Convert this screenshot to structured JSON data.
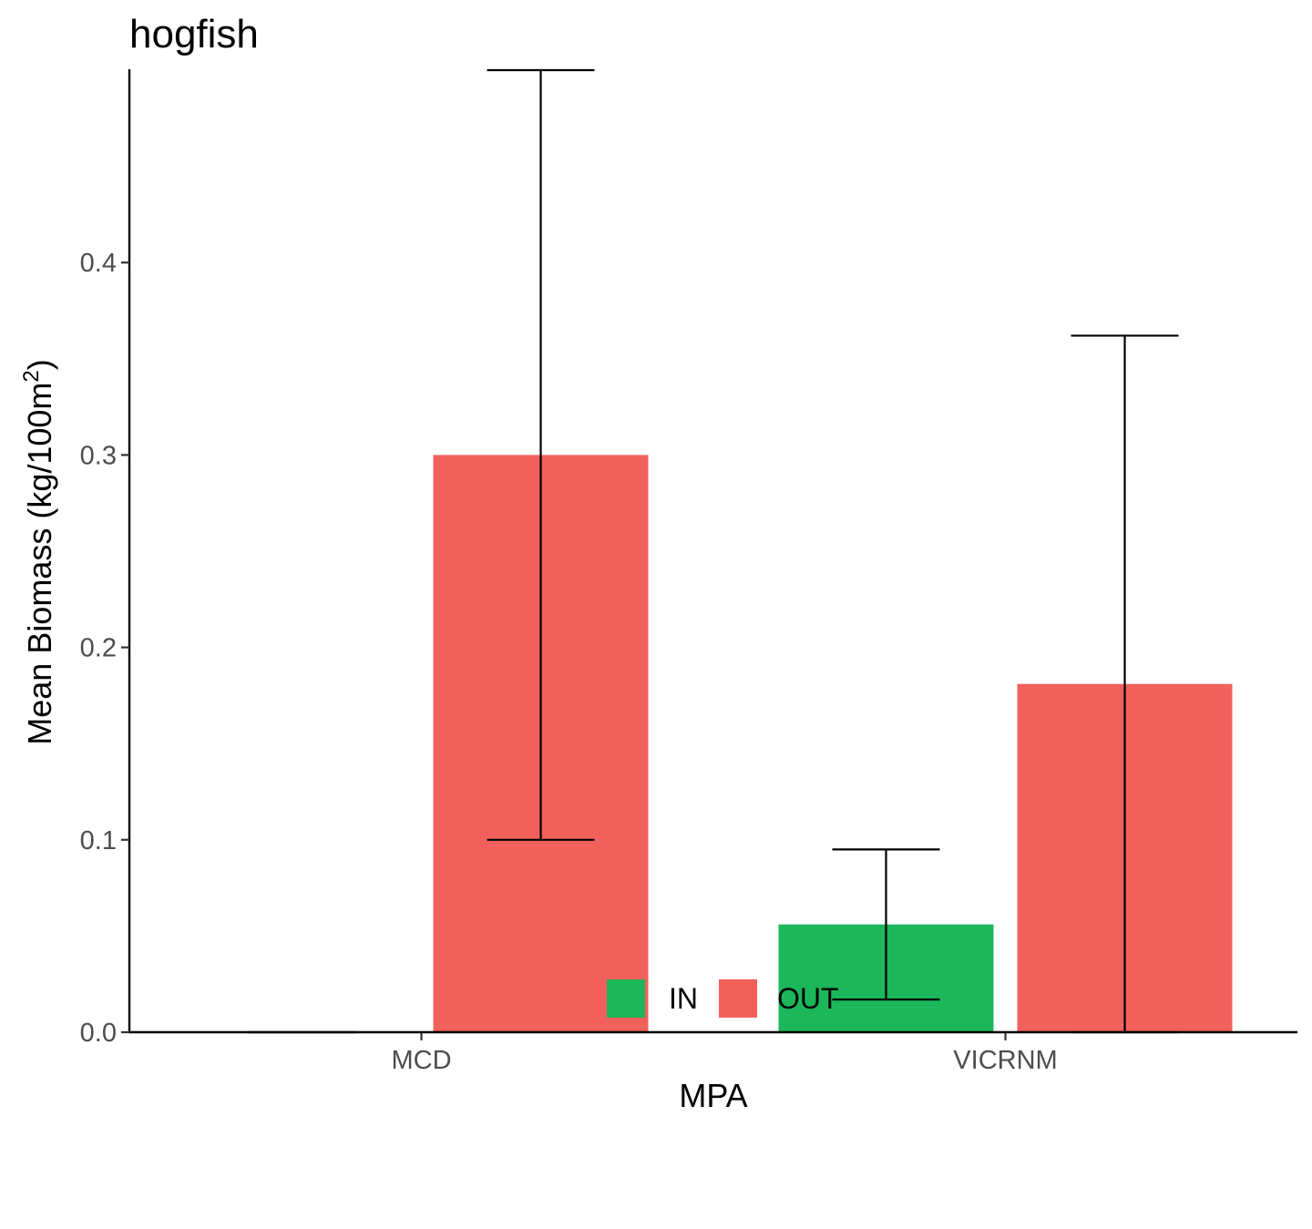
{
  "chart_data": {
    "type": "bar",
    "title": "hogfish",
    "xlabel": "MPA",
    "ylabel_main": "Mean Biomass (kg/100m",
    "ylabel_sup": "2",
    "ylabel_close": ")",
    "categories": [
      "MCD",
      "VICRNM"
    ],
    "series": [
      {
        "name": "IN",
        "color": "#1bb75a",
        "values": [
          0.0,
          0.056
        ],
        "error_low": [
          0.0,
          0.017
        ],
        "error_high": [
          0.0,
          0.095
        ]
      },
      {
        "name": "OUT",
        "color": "#f2605b",
        "values": [
          0.3,
          0.181
        ],
        "error_low": [
          0.1,
          0.0
        ],
        "error_high": [
          0.5,
          0.362
        ]
      }
    ],
    "y_ticks": [
      0.0,
      0.1,
      0.2,
      0.3,
      0.4
    ],
    "y_tick_labels": [
      "0.0",
      "0.1",
      "0.2",
      "0.3",
      "0.4"
    ],
    "ylim": [
      0,
      0.5
    ],
    "grid": false,
    "legend_position": "bottom"
  }
}
